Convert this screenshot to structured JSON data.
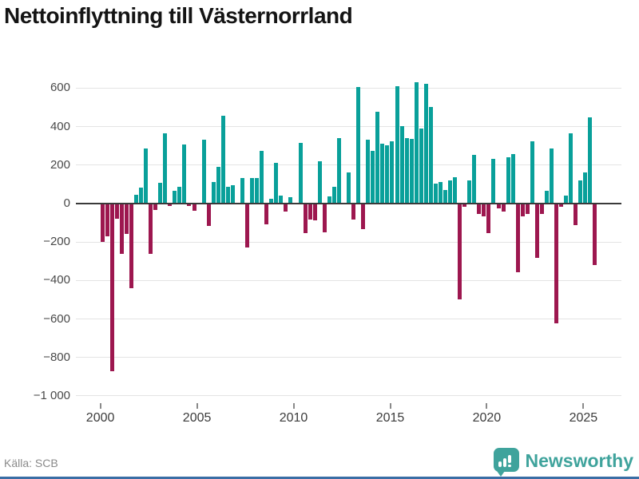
{
  "title": "Nettoinflyttning till Västernorrland",
  "source": "Källa: SCB",
  "branding": {
    "name": "Newsworthy"
  },
  "colors": {
    "positive": "#09a09a",
    "negative": "#9d174f",
    "grid": "#e4e4e4",
    "zero_line": "#3a3a3a",
    "axis_text": "#4a4a4a",
    "source_text": "#8a8a8a",
    "brand": "#3fa39c",
    "bottom_bar": "#3a6ea5",
    "title_text": "#141414"
  },
  "chart_data": {
    "type": "bar",
    "title": "Nettoinflyttning till Västernorrland",
    "x_unit": "quarter",
    "start": "2000Q1",
    "end": "2025Q3",
    "ylim": [
      -1000,
      600
    ],
    "grid": true,
    "legend": false,
    "y_ticks": [
      {
        "v": 600,
        "label": "600"
      },
      {
        "v": 400,
        "label": "400"
      },
      {
        "v": 200,
        "label": "200"
      },
      {
        "v": 0,
        "label": "0"
      },
      {
        "v": -200,
        "label": "−200"
      },
      {
        "v": -400,
        "label": "−400"
      },
      {
        "v": -600,
        "label": "−600"
      },
      {
        "v": -800,
        "label": "−800"
      },
      {
        "v": -1000,
        "label": "−1 000"
      }
    ],
    "x_ticks": [
      {
        "year": 2000,
        "label": "2000"
      },
      {
        "year": 2005,
        "label": "2005"
      },
      {
        "year": 2010,
        "label": "2010"
      },
      {
        "year": 2015,
        "label": "2015"
      },
      {
        "year": 2020,
        "label": "2020"
      },
      {
        "year": 2025,
        "label": "2025"
      }
    ],
    "values": [
      -200,
      -170,
      -875,
      -80,
      -265,
      -160,
      -440,
      45,
      80,
      285,
      -265,
      -35,
      105,
      365,
      -15,
      65,
      85,
      305,
      -15,
      -40,
      0,
      330,
      -120,
      110,
      190,
      455,
      85,
      95,
      0,
      130,
      -230,
      130,
      130,
      270,
      -110,
      25,
      210,
      40,
      -45,
      30,
      0,
      315,
      -155,
      -85,
      -90,
      220,
      -150,
      35,
      85,
      340,
      0,
      160,
      -85,
      605,
      -135,
      330,
      270,
      475,
      310,
      300,
      320,
      610,
      400,
      340,
      335,
      630,
      390,
      620,
      500,
      100,
      110,
      70,
      120,
      135,
      -500,
      -20,
      120,
      250,
      -55,
      -70,
      -155,
      230,
      -25,
      -45,
      240,
      255,
      -360,
      -70,
      -55,
      320,
      -285,
      -55,
      65,
      285,
      -625,
      -20,
      40,
      365,
      -115,
      120,
      160,
      445,
      -320
    ]
  }
}
